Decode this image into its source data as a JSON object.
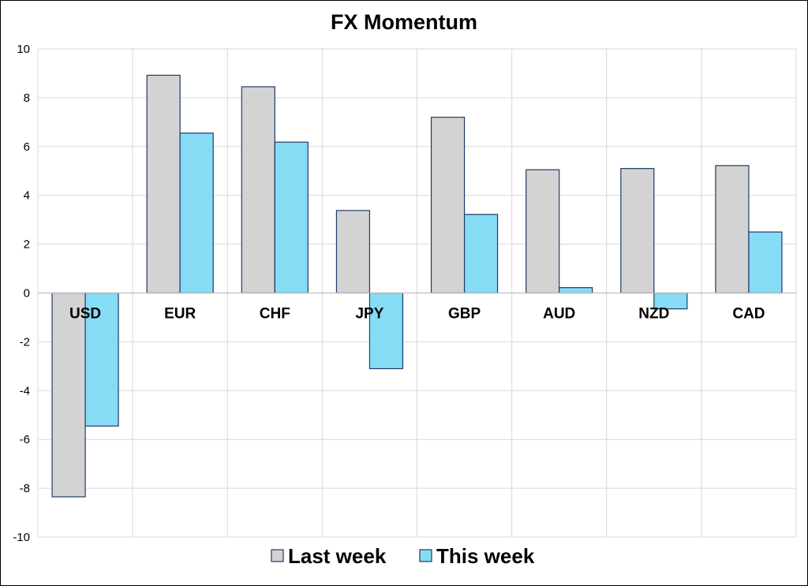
{
  "chart_data": {
    "type": "bar",
    "title": "FX Momentum",
    "xlabel": "",
    "ylabel": "",
    "categories": [
      "USD",
      "EUR",
      "CHF",
      "JPY",
      "GBP",
      "AUD",
      "NZD",
      "CAD"
    ],
    "series": [
      {
        "name": "Last week",
        "values": [
          -8.35,
          8.92,
          8.45,
          3.38,
          7.2,
          5.05,
          5.1,
          5.22
        ],
        "color": "#d3d3d3"
      },
      {
        "name": "This week",
        "values": [
          -5.45,
          6.55,
          6.18,
          -3.1,
          3.22,
          0.22,
          -0.65,
          2.5
        ],
        "color": "#87dcf5"
      }
    ],
    "bar_outline_color": "#1f3a68",
    "ylim": [
      -10,
      10
    ],
    "yticks": [
      -10,
      -8,
      -6,
      -4,
      -2,
      0,
      2,
      4,
      6,
      8,
      10
    ],
    "grid": true,
    "legend_position": "bottom"
  }
}
